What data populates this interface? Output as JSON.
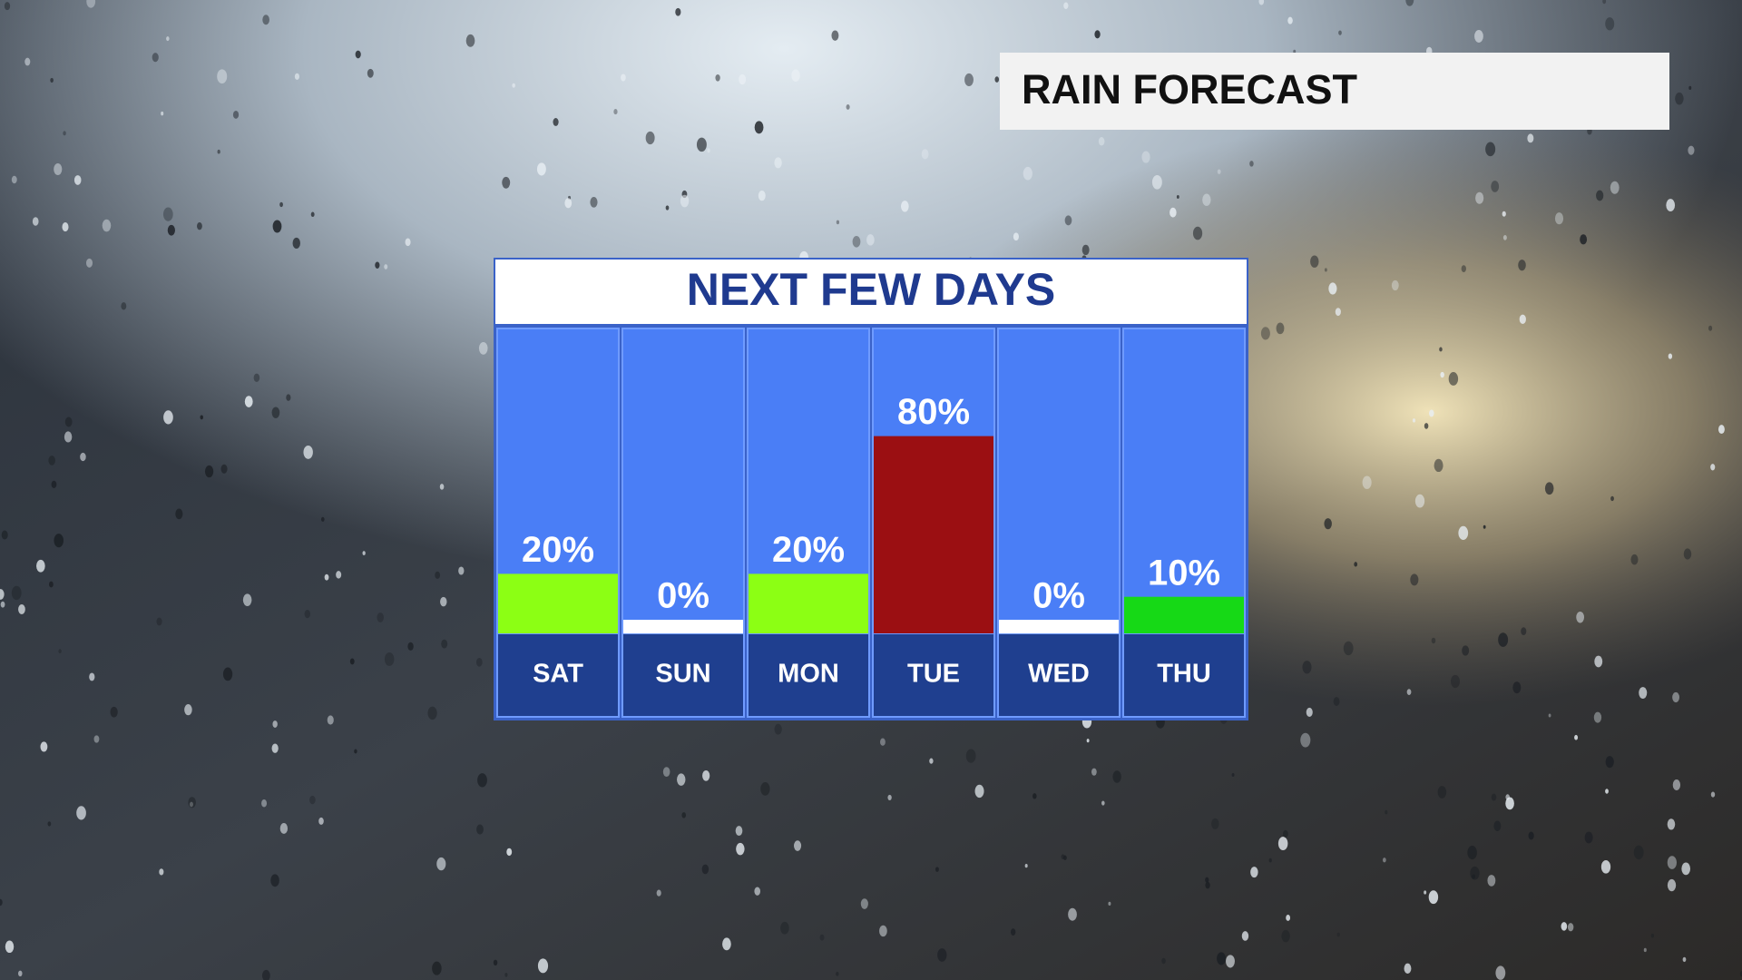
{
  "title": "RAIN FORECAST",
  "chart_data": {
    "type": "bar",
    "title": "NEXT FEW DAYS",
    "categories": [
      "SAT",
      "SUN",
      "MON",
      "TUE",
      "WED",
      "THU"
    ],
    "values": [
      20,
      0,
      20,
      80,
      0,
      10
    ],
    "value_labels": [
      "20%",
      "0%",
      "20%",
      "80%",
      "0%",
      "10%"
    ],
    "colors": [
      "#8cff14",
      "#ffffff",
      "#8cff14",
      "#9b0f12",
      "#ffffff",
      "#16d916"
    ]
  }
}
